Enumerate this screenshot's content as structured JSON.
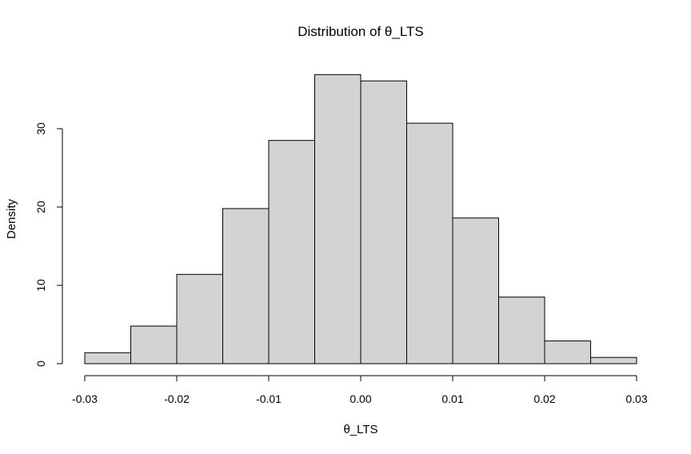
{
  "chart_data": {
    "type": "bar",
    "title": "Distribution of θ_LTS",
    "xlabel": "θ_LTS",
    "ylabel": "Density",
    "bin_edges": [
      -0.03,
      -0.025,
      -0.02,
      -0.015,
      -0.01,
      -0.005,
      0.0,
      0.005,
      0.01,
      0.015,
      0.02,
      0.025,
      0.03
    ],
    "values": [
      1.4,
      4.8,
      11.4,
      19.8,
      28.5,
      36.9,
      36.1,
      30.7,
      18.6,
      8.5,
      2.9,
      0.8
    ],
    "xlim": [
      -0.03,
      0.03
    ],
    "ylim": [
      0,
      40
    ],
    "x_ticks": [
      -0.03,
      -0.02,
      -0.01,
      0.0,
      0.01,
      0.02,
      0.03
    ],
    "x_tick_labels": [
      "-0.03",
      "-0.02",
      "-0.01",
      "0.00",
      "0.01",
      "0.02",
      "0.03"
    ],
    "y_ticks": [
      0,
      10,
      20,
      30
    ],
    "y_tick_labels": [
      "0",
      "10",
      "20",
      "30"
    ],
    "grid": false,
    "bar_fill": "#d3d3d3",
    "bar_stroke": "#000000"
  }
}
